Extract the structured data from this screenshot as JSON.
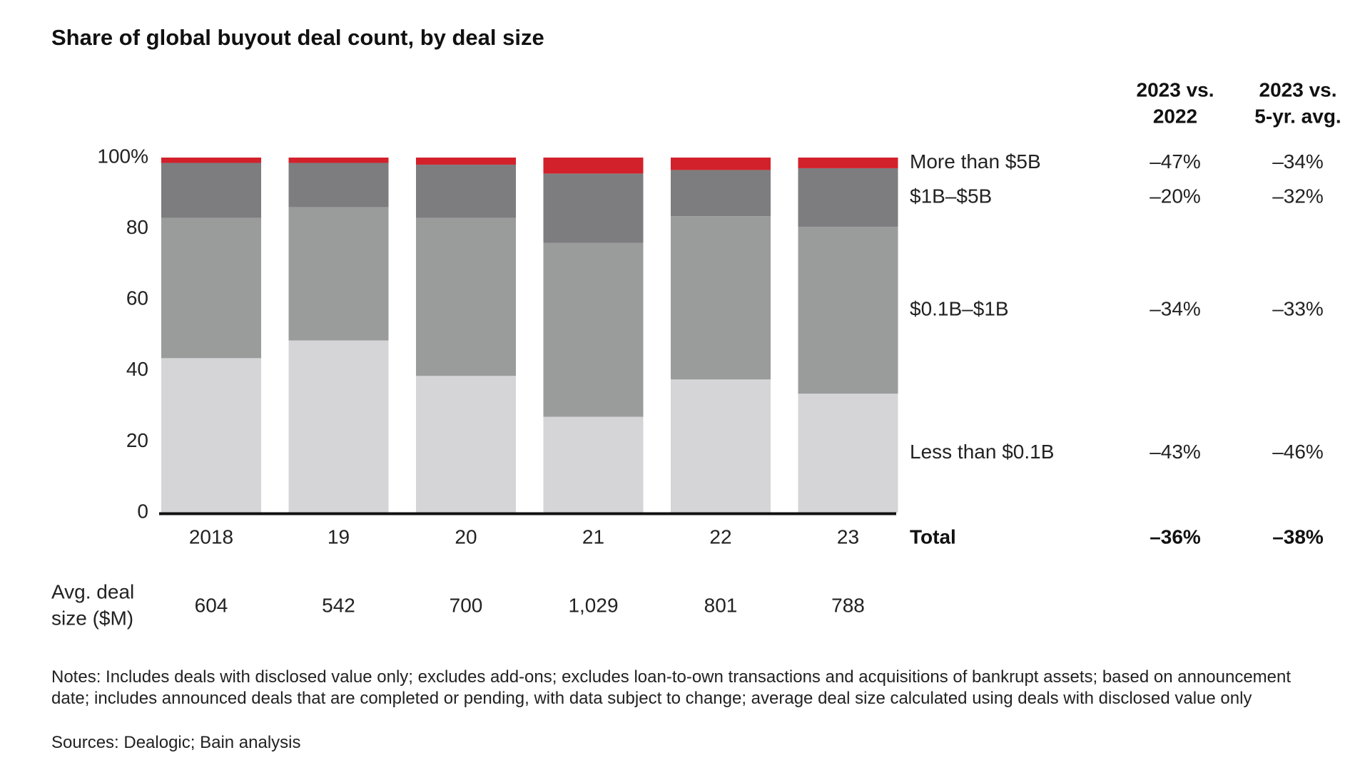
{
  "chart_data": {
    "type": "stacked_bar",
    "title": "Share of global buyout deal count, by deal size",
    "categories": [
      "2018",
      "19",
      "20",
      "21",
      "22",
      "23"
    ],
    "series": [
      {
        "name": "Less than $0.1B",
        "color": "#d5d5d7",
        "values": [
          43.5,
          48.5,
          38.5,
          27,
          37.5,
          33.5
        ],
        "changes": [
          "–43%",
          "–46%"
        ]
      },
      {
        "name": "$0.1B–$1B",
        "color": "#9a9b9b",
        "values": [
          39.5,
          37.5,
          44.5,
          49,
          46,
          47
        ],
        "changes": [
          "–34%",
          "–33%"
        ]
      },
      {
        "name": "$1B–$5B",
        "color": "#7d7d7f",
        "values": [
          15.5,
          12.5,
          15,
          19.5,
          13,
          16.5
        ],
        "changes": [
          "–20%",
          "–32%"
        ]
      },
      {
        "name": "More than $5B",
        "color": "#d2212b",
        "values": [
          1.5,
          1.5,
          2,
          4.5,
          3.5,
          3
        ],
        "changes": [
          "–47%",
          "–34%"
        ]
      }
    ],
    "ylim": [
      0,
      100
    ],
    "yticks": [
      0,
      20,
      40,
      60,
      80,
      {
        "value": 100,
        "label": "100%"
      }
    ],
    "comparison_headers": [
      [
        "2023 vs.",
        "2022"
      ],
      [
        "2023 vs.",
        "5-yr. avg."
      ]
    ],
    "total": {
      "label": "Total",
      "changes": [
        "–36%",
        "–38%"
      ]
    },
    "avg_deal_size": {
      "label": [
        "Avg. deal",
        "size ($M)"
      ],
      "values": [
        604,
        542,
        700,
        1029,
        801,
        788
      ],
      "value_labels": [
        "604",
        "542",
        "700",
        "1,029",
        "801",
        "788"
      ]
    },
    "notes": "Notes: Includes deals with disclosed value only; excludes add-ons; excludes loan-to-own transactions and acquisitions of bankrupt assets; based on announcement date; includes announced deals that are completed or pending, with data subject to change; average deal size calculated using deals with disclosed value only",
    "sources": "Sources: Dealogic; Bain analysis"
  }
}
